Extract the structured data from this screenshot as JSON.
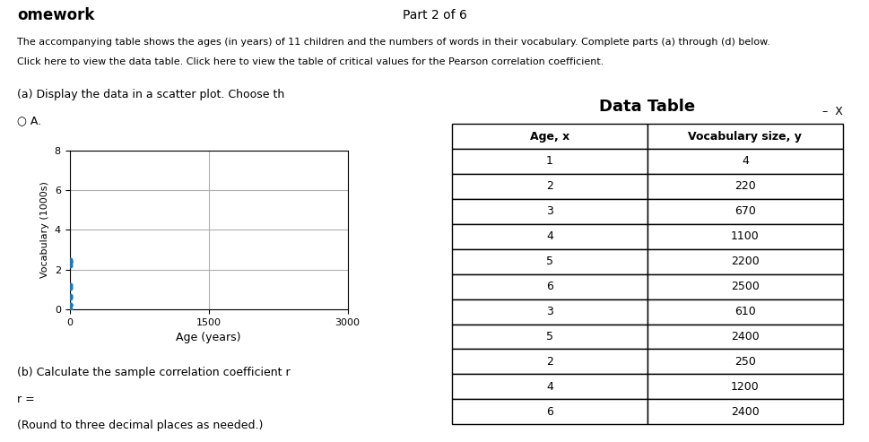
{
  "chart_data": [
    {
      "type": "scatter",
      "x_label": "Age (years)",
      "y_label": "Vocabulary (1000s)",
      "x": [
        4,
        2,
        3,
        1,
        5,
        6,
        3,
        5,
        2,
        4,
        6
      ],
      "values": [
        1.1,
        0.22,
        0.67,
        0.004,
        2.2,
        2.5,
        0.61,
        2.4,
        0.25,
        1.2,
        2.4
      ],
      "xlim": [
        0,
        3000
      ],
      "ylim": [
        0,
        8
      ],
      "xticks": [
        0,
        1500,
        3000
      ],
      "yticks": [
        0,
        2,
        4,
        6,
        8
      ],
      "grid": true,
      "annotations": [
        "omework",
        "Part 2 of 6",
        "The accompanying table shows the ages (in years) of 11 children and the numbers of words in their vocabulary. Complete parts (a) through (d) below.",
        "Click here to view the data table. Click here to view the table of critical values for the Pearson correlation coefficient.",
        "(a) Display the data in a scatter plot. Choose th",
        "○ A.",
        "(b) Calculate the sample correlation coefficient r",
        "r =",
        "(Round to three decimal places as needed.)"
      ]
    },
    {
      "type": "table",
      "title": "Data Table",
      "columns": [
        "Age, x",
        "Vocabulary size, y"
      ],
      "rows": [
        [
          1,
          4
        ],
        [
          2,
          220
        ],
        [
          3,
          670
        ],
        [
          4,
          1100
        ],
        [
          5,
          2200
        ],
        [
          6,
          2500
        ],
        [
          3,
          610
        ],
        [
          5,
          2400
        ],
        [
          2,
          250
        ],
        [
          4,
          1200
        ],
        [
          6,
          2400
        ]
      ],
      "annotations": [
        "–  X"
      ]
    }
  ]
}
